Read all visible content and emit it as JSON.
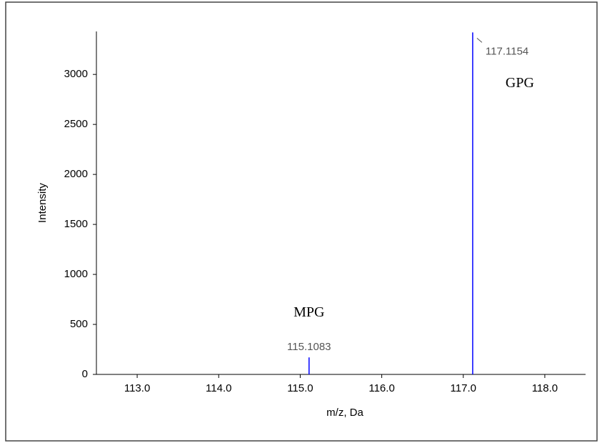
{
  "chart_data": {
    "type": "stick",
    "x_label": "m/z, Da",
    "y_label": "Intensity",
    "x": [
      115.1083,
      117.1154
    ],
    "series": [
      {
        "color": "#0000ff",
        "values": [
          170,
          3420
        ]
      }
    ],
    "annotations": [
      "MPG",
      "GPG"
    ],
    "xlim": [
      112.5,
      118.5
    ],
    "ylim": [
      0,
      3430
    ],
    "xticks": [
      {
        "value": 113,
        "label": "113.0"
      },
      {
        "value": 114,
        "label": "114.0"
      },
      {
        "value": 115,
        "label": "115.0"
      },
      {
        "value": 116,
        "label": "116.0"
      },
      {
        "value": 117,
        "label": "117.0"
      },
      {
        "value": 118,
        "label": "118.0"
      }
    ],
    "yticks": [
      0,
      500,
      1000,
      1500,
      2000,
      2500,
      3000
    ],
    "grid": false
  }
}
